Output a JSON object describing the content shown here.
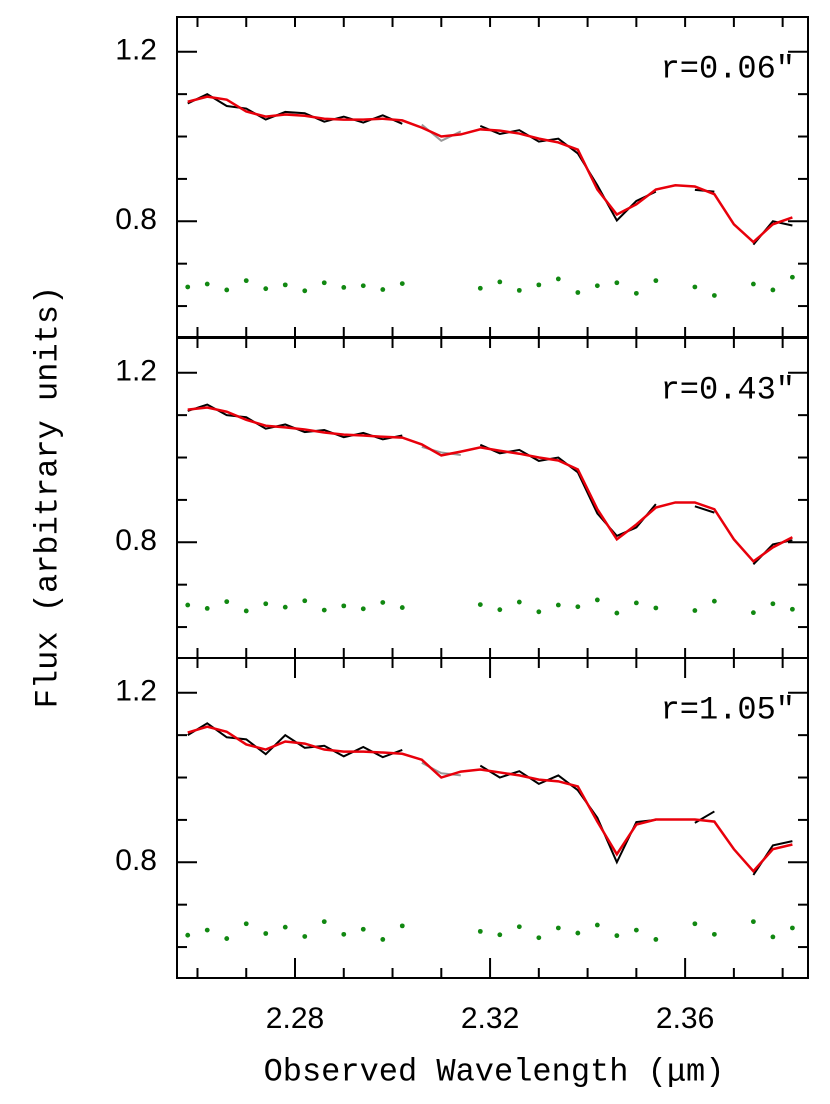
{
  "chart_data": [
    {
      "type": "line",
      "annotation": "r=0.06″",
      "x": [
        2.258,
        2.262,
        2.266,
        2.27,
        2.274,
        2.278,
        2.282,
        2.286,
        2.29,
        2.294,
        2.298,
        2.302,
        2.306,
        2.31,
        2.314,
        2.318,
        2.322,
        2.326,
        2.33,
        2.334,
        2.338,
        2.342,
        2.346,
        2.35,
        2.354,
        2.358,
        2.362,
        2.366,
        2.37,
        2.374,
        2.378,
        2.382
      ],
      "xlim": [
        2.2558,
        2.3852
      ],
      "ylim": [
        0.527,
        1.282
      ],
      "yticks": [
        0.8,
        1.2
      ],
      "yminor_ticks": [
        0.6,
        0.7,
        0.9,
        1.0,
        1.1
      ],
      "xminor_ticks": [
        2.26,
        2.27,
        2.28,
        2.29,
        2.3,
        2.31,
        2.32,
        2.33,
        2.34,
        2.35,
        2.36,
        2.37,
        2.38
      ],
      "masked_ranges": [
        [
          2.305,
          2.316
        ],
        [
          2.356,
          2.36
        ],
        [
          2.368,
          2.372
        ]
      ],
      "masked_color": "#999999",
      "data": {
        "color": "#000000",
        "values": [
          1.078,
          1.1,
          1.072,
          1.066,
          1.04,
          1.058,
          1.055,
          1.035,
          1.047,
          1.033,
          1.05,
          1.03,
          1.028,
          0.99,
          1.012,
          1.025,
          1.006,
          1.015,
          0.988,
          0.995,
          0.96,
          0.885,
          0.802,
          0.848,
          0.87,
          0.9,
          0.874,
          0.87,
          0.78,
          0.745,
          0.8,
          0.79
        ]
      },
      "model": {
        "color": "#e8000b",
        "values": [
          1.082,
          1.094,
          1.087,
          1.059,
          1.047,
          1.052,
          1.049,
          1.042,
          1.04,
          1.04,
          1.042,
          1.038,
          1.021,
          1.0,
          1.005,
          1.017,
          1.014,
          1.007,
          0.995,
          0.986,
          0.969,
          0.875,
          0.816,
          0.84,
          0.875,
          0.885,
          0.882,
          0.864,
          0.793,
          0.751,
          0.793,
          0.809
        ]
      },
      "residuals": {
        "color": "#118811",
        "values": [
          0.645,
          0.652,
          0.638,
          0.66,
          0.641,
          0.65,
          0.636,
          0.655,
          0.644,
          0.648,
          0.639,
          0.653,
          null,
          null,
          null,
          0.642,
          0.657,
          0.637,
          0.65,
          0.664,
          0.632,
          0.648,
          0.655,
          0.63,
          0.66,
          null,
          0.645,
          0.625,
          null,
          0.652,
          0.638,
          0.668
        ]
      }
    },
    {
      "type": "line",
      "annotation": "r=0.43″",
      "ylabel": "Flux (arbitrary units)",
      "x": [
        2.258,
        2.262,
        2.266,
        2.27,
        2.274,
        2.278,
        2.282,
        2.286,
        2.29,
        2.294,
        2.298,
        2.302,
        2.306,
        2.31,
        2.314,
        2.318,
        2.322,
        2.326,
        2.33,
        2.334,
        2.338,
        2.342,
        2.346,
        2.35,
        2.354,
        2.358,
        2.362,
        2.366,
        2.37,
        2.374,
        2.378,
        2.382
      ],
      "xlim": [
        2.2558,
        2.3852
      ],
      "ylim": [
        0.527,
        1.282
      ],
      "yticks": [
        0.8,
        1.2
      ],
      "yminor_ticks": [
        0.6,
        0.7,
        0.9,
        1.0,
        1.1
      ],
      "xminor_ticks": [
        2.26,
        2.27,
        2.28,
        2.29,
        2.3,
        2.31,
        2.32,
        2.33,
        2.34,
        2.35,
        2.36,
        2.37,
        2.38
      ],
      "masked_ranges": [
        [
          2.305,
          2.316
        ],
        [
          2.356,
          2.36
        ],
        [
          2.368,
          2.372
        ]
      ],
      "masked_color": "#999999",
      "data": {
        "color": "#000000",
        "values": [
          1.11,
          1.125,
          1.1,
          1.095,
          1.068,
          1.078,
          1.06,
          1.065,
          1.048,
          1.058,
          1.043,
          1.052,
          1.025,
          1.012,
          1.006,
          1.03,
          1.01,
          1.018,
          0.992,
          1.0,
          0.965,
          0.868,
          0.815,
          0.835,
          0.89,
          0.905,
          0.885,
          0.87,
          0.82,
          0.748,
          0.795,
          0.805
        ]
      },
      "model": {
        "color": "#e8000b",
        "values": [
          1.113,
          1.118,
          1.108,
          1.089,
          1.075,
          1.071,
          1.066,
          1.059,
          1.054,
          1.052,
          1.049,
          1.047,
          1.031,
          1.005,
          1.014,
          1.024,
          1.016,
          1.009,
          1.0,
          0.993,
          0.972,
          0.878,
          0.807,
          0.842,
          0.882,
          0.894,
          0.894,
          0.878,
          0.807,
          0.755,
          0.788,
          0.812
        ]
      },
      "residuals": {
        "color": "#118811",
        "values": [
          0.652,
          0.644,
          0.66,
          0.638,
          0.655,
          0.647,
          0.662,
          0.64,
          0.65,
          0.643,
          0.658,
          0.646,
          null,
          null,
          null,
          0.653,
          0.641,
          0.659,
          0.636,
          0.652,
          0.648,
          0.664,
          0.633,
          0.657,
          0.645,
          null,
          0.639,
          0.661,
          null,
          0.634,
          0.655,
          0.642
        ]
      }
    },
    {
      "type": "line",
      "annotation": "r=1.05″",
      "xlabel": "Observed Wavelength (μm)",
      "x": [
        2.258,
        2.262,
        2.266,
        2.27,
        2.274,
        2.278,
        2.282,
        2.286,
        2.29,
        2.294,
        2.298,
        2.302,
        2.306,
        2.31,
        2.314,
        2.318,
        2.322,
        2.326,
        2.33,
        2.334,
        2.338,
        2.342,
        2.346,
        2.35,
        2.354,
        2.358,
        2.362,
        2.366,
        2.37,
        2.374,
        2.378,
        2.382
      ],
      "xlim": [
        2.2558,
        2.3852
      ],
      "ylim": [
        0.527,
        1.282
      ],
      "yticks": [
        0.8,
        1.2
      ],
      "yminor_ticks": [
        0.6,
        0.7,
        0.9,
        1.0,
        1.1
      ],
      "xticks": [
        2.28,
        2.32,
        2.36
      ],
      "xminor_ticks": [
        2.26,
        2.27,
        2.29,
        2.3,
        2.31,
        2.33,
        2.34,
        2.35,
        2.37,
        2.38
      ],
      "masked_ranges": [
        [
          2.305,
          2.316
        ],
        [
          2.356,
          2.36
        ],
        [
          2.368,
          2.372
        ]
      ],
      "masked_color": "#999999",
      "data": {
        "color": "#000000",
        "values": [
          1.1,
          1.128,
          1.095,
          1.09,
          1.055,
          1.1,
          1.07,
          1.075,
          1.05,
          1.072,
          1.048,
          1.065,
          1.035,
          1.01,
          1.005,
          1.028,
          1.0,
          1.015,
          0.985,
          1.005,
          0.97,
          0.905,
          0.8,
          0.895,
          0.9,
          0.91,
          0.893,
          0.92,
          0.84,
          0.77,
          0.84,
          0.85
        ]
      },
      "model": {
        "color": "#e8000b",
        "values": [
          1.106,
          1.12,
          1.108,
          1.078,
          1.066,
          1.085,
          1.08,
          1.066,
          1.061,
          1.061,
          1.059,
          1.056,
          1.042,
          1.0,
          1.014,
          1.019,
          1.012,
          1.005,
          0.995,
          0.991,
          0.979,
          0.896,
          0.819,
          0.889,
          0.901,
          0.901,
          0.901,
          0.896,
          0.831,
          0.779,
          0.831,
          0.842
        ]
      },
      "residuals": {
        "color": "#118811",
        "values": [
          0.628,
          0.64,
          0.62,
          0.655,
          0.632,
          0.647,
          0.625,
          0.66,
          0.63,
          0.642,
          0.618,
          0.65,
          null,
          null,
          null,
          0.637,
          0.629,
          0.648,
          0.622,
          0.645,
          0.633,
          0.652,
          0.627,
          0.64,
          0.618,
          null,
          0.655,
          0.63,
          null,
          0.66,
          0.624,
          0.645
        ]
      }
    }
  ]
}
